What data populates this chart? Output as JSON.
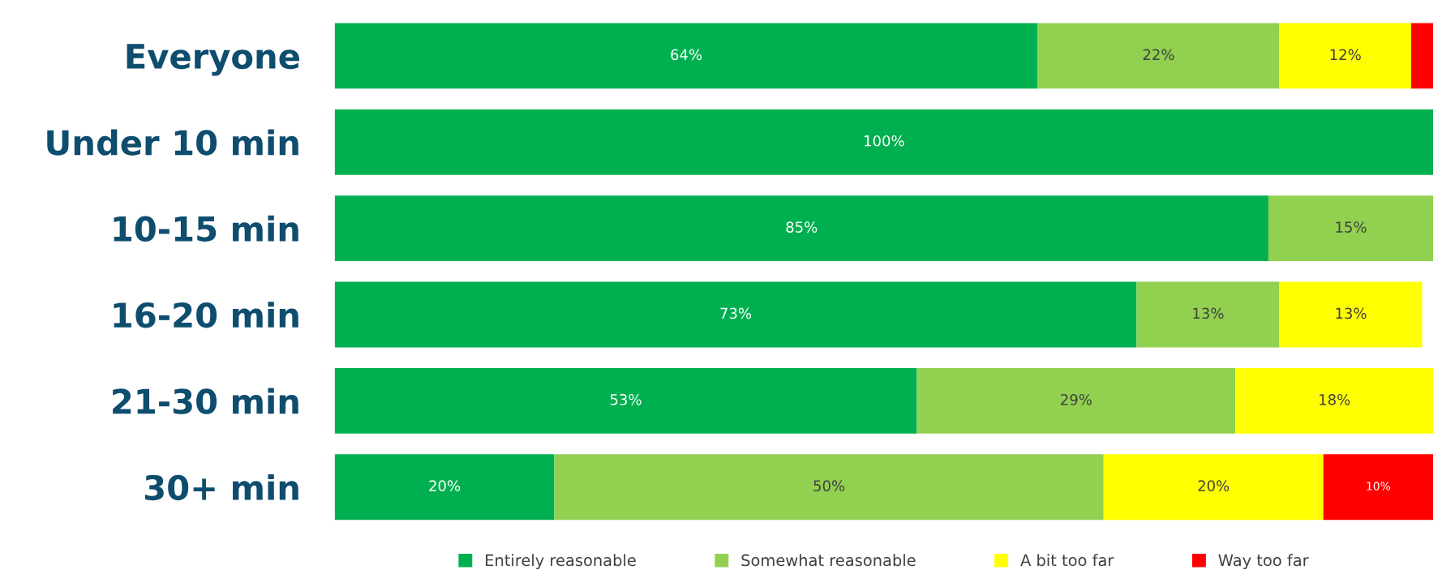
{
  "chart_data": {
    "type": "bar",
    "orientation": "horizontal",
    "stacked": true,
    "categories": [
      "Everyone",
      "Under 10 min",
      "10-15 min",
      "16-20 min",
      "21-30 min",
      "30+ min"
    ],
    "series": [
      {
        "name": "Entirely reasonable",
        "color": "#00b050",
        "values": [
          64,
          100,
          85,
          73,
          53,
          20
        ],
        "value_labels": [
          "64%",
          "100%",
          "85%",
          "73%",
          "53%",
          "20%"
        ]
      },
      {
        "name": "Somewhat reasonable",
        "color": "#92d050",
        "values": [
          22,
          null,
          15,
          13,
          29,
          50
        ],
        "value_labels": [
          "22%",
          null,
          "15%",
          "13%",
          "29%",
          "50%"
        ]
      },
      {
        "name": "A bit too far",
        "color": "#ffff00",
        "values": [
          12,
          null,
          null,
          13,
          18,
          20
        ],
        "value_labels": [
          "12%",
          null,
          null,
          "13%",
          "18%",
          "20%"
        ]
      },
      {
        "name": "Way too far",
        "color": "#ff0000",
        "values": [
          2,
          null,
          null,
          null,
          null,
          10
        ],
        "value_labels": [
          null,
          null,
          null,
          null,
          null,
          "10%"
        ]
      }
    ],
    "tick_labels": "y",
    "grid": false,
    "legend": "bottom"
  }
}
